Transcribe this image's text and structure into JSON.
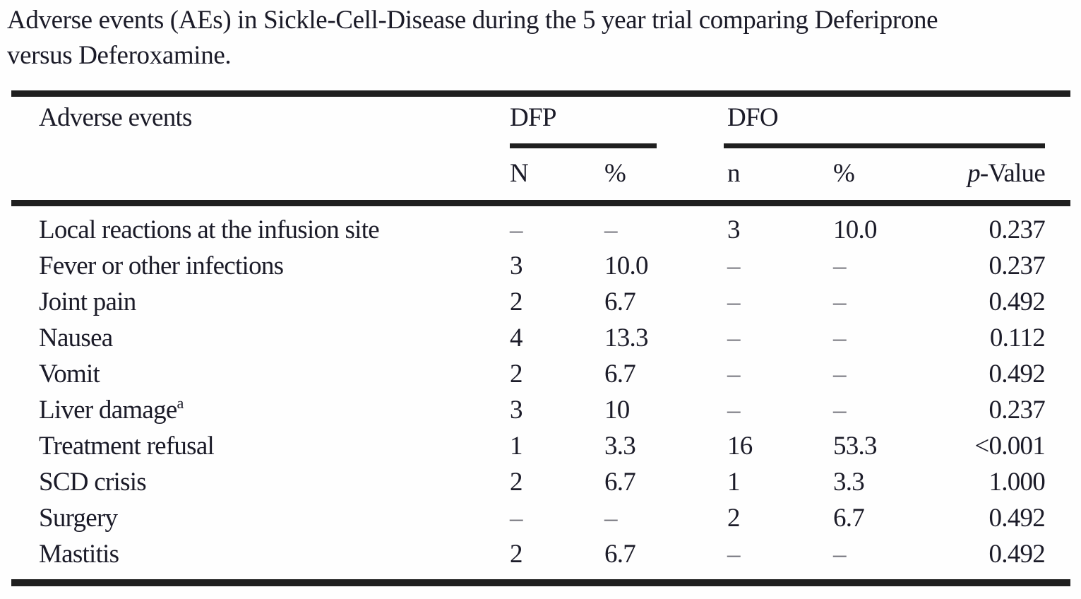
{
  "caption": {
    "line1": "Adverse events (AEs) in Sickle-Cell-Disease during the 5 year trial comparing Deferiprone",
    "line2": "versus Deferoxamine."
  },
  "table": {
    "header": {
      "label": "Adverse events",
      "group1": "DFP",
      "group2": "DFO",
      "sub_n_upper": "N",
      "sub_pct1": "%",
      "sub_n_lower": "n",
      "sub_pct2": "%",
      "sub_p_italic": "p",
      "sub_p_rest": "-Value"
    },
    "rows": [
      {
        "label": "Local reactions at the infusion site",
        "sup": "",
        "dfp_n": "–",
        "dfp_pct": "–",
        "dfo_n": "3",
        "dfo_pct": "10.0",
        "p": "0.237"
      },
      {
        "label": "Fever or other infections",
        "sup": "",
        "dfp_n": "3",
        "dfp_pct": "10.0",
        "dfo_n": "–",
        "dfo_pct": "–",
        "p": "0.237"
      },
      {
        "label": "Joint pain",
        "sup": "",
        "dfp_n": "2",
        "dfp_pct": "6.7",
        "dfo_n": "–",
        "dfo_pct": "–",
        "p": "0.492"
      },
      {
        "label": "Nausea",
        "sup": "",
        "dfp_n": "4",
        "dfp_pct": "13.3",
        "dfo_n": "–",
        "dfo_pct": "–",
        "p": "0.112"
      },
      {
        "label": "Vomit",
        "sup": "",
        "dfp_n": "2",
        "dfp_pct": "6.7",
        "dfo_n": "–",
        "dfo_pct": "–",
        "p": "0.492"
      },
      {
        "label": "Liver damage",
        "sup": "a",
        "dfp_n": "3",
        "dfp_pct": "10",
        "dfo_n": "–",
        "dfo_pct": "–",
        "p": "0.237"
      },
      {
        "label": "Treatment refusal",
        "sup": "",
        "dfp_n": "1",
        "dfp_pct": "3.3",
        "dfo_n": "16",
        "dfo_pct": "53.3",
        "p": "<0.001"
      },
      {
        "label": "SCD crisis",
        "sup": "",
        "dfp_n": "2",
        "dfp_pct": "6.7",
        "dfo_n": "1",
        "dfo_pct": "3.3",
        "p": "1.000"
      },
      {
        "label": "Surgery",
        "sup": "",
        "dfp_n": "–",
        "dfp_pct": "–",
        "dfo_n": "2",
        "dfo_pct": "6.7",
        "p": "0.492"
      },
      {
        "label": "Mastitis",
        "sup": "",
        "dfp_n": "2",
        "dfp_pct": "6.7",
        "dfo_n": "–",
        "dfo_pct": "–",
        "p": "0.492"
      }
    ]
  },
  "colors": {
    "text": "#1b1b28",
    "rule": "#1f1f1f",
    "dash_muted": "#6b6b74",
    "background": "#fefefe"
  }
}
